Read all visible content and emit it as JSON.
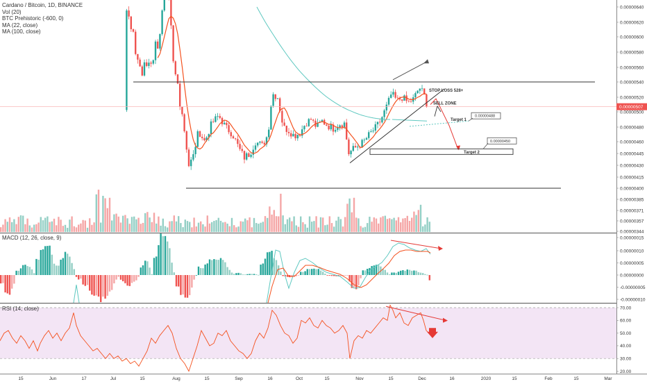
{
  "header": {
    "symbol_line": "Cardano / Bitcoin, 1D, BINANCE",
    "indicators": [
      "Vol (20)",
      "BTC Prehistoric (-600, 0)",
      "MA (22, close)",
      "MA (100, close)"
    ]
  },
  "colors": {
    "up": "#26a69a",
    "down": "#ef5350",
    "vol_up": "#94cfc5",
    "vol_down": "#f5a6a6",
    "ma22": "#f4511e",
    "ma100": "#5ec8c0",
    "macd_line": "#5ec8c0",
    "signal_line": "#f4511e",
    "rsi_line": "#f4511e",
    "rsi_band": "#f3e5f5",
    "annotation_red": "#e53935",
    "price_tag": "#ef5350"
  },
  "chart_data": [
    {
      "type": "candlestick",
      "title": "Cardano / Bitcoin, 1D, BINANCE",
      "y_axis_ticks": [
        "0.00000640",
        "0.00000620",
        "0.00000600",
        "0.00000580",
        "0.00000560",
        "0.00000540",
        "0.00000520",
        "0.00000500",
        "0.00000480",
        "0.00000460",
        "0.00000445",
        "0.00000430",
        "0.00000415",
        "0.00000400",
        "0.00000385",
        "0.00000371",
        "0.00000357",
        "0.00000344"
      ],
      "current_price_label": "0.00000507",
      "current_price": 5.07e-06,
      "x_axis_ticks": [
        "15",
        "Jun",
        "17",
        "Jul",
        "15",
        "Aug",
        "15",
        "Sep",
        "16",
        "Oct",
        "15",
        "Nov",
        "15",
        "Dec",
        "16",
        "2020",
        "15",
        "Feb",
        "15",
        "Mar"
      ],
      "series": [
        {
          "name": "MA (22, close)"
        },
        {
          "name": "MA (100, close)"
        },
        {
          "name": "Vol (20)"
        }
      ],
      "annotations": [
        {
          "text": "STOP LOSS 528+"
        },
        {
          "text": "SELL ZONE"
        },
        {
          "text": "Target 1"
        },
        {
          "text": "Target 2"
        },
        {
          "text": "0.00000488",
          "value": 4.88e-06
        },
        {
          "text": "0.00000450",
          "value": 4.5e-06
        }
      ],
      "horizontal_lines": [
        5.4e-06,
        4e-06
      ]
    },
    {
      "type": "macd",
      "title": "MACD (12, 26, close, 9)",
      "y_axis_ticks": [
        "0.00000015",
        "0.00000010",
        "0.00000005",
        "0.00000000",
        "-0.00000005",
        "-0.00000010"
      ]
    },
    {
      "type": "line",
      "title": "RSI (14, close)",
      "y_axis_ticks": [
        "70.00",
        "60.00",
        "50.00",
        "40.00",
        "30.00",
        "20.00"
      ],
      "band": [
        30,
        70
      ]
    }
  ],
  "panes": {
    "macd_label": "MACD (12, 26, close, 9)",
    "rsi_label": "RSI (14, close)"
  }
}
